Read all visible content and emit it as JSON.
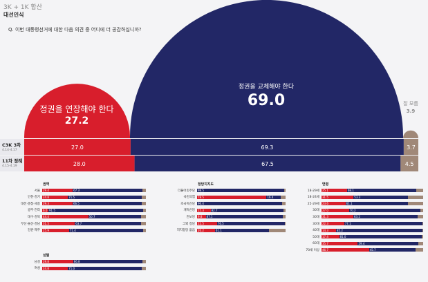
{
  "header": {
    "title": "3K + 1K 합산",
    "subtitle": "대선인식",
    "question": "Q. 이번 대통령선거에 대한 다음 의견 중 어디에 더 공감하십니까?"
  },
  "colors": {
    "red": "#d81e2c",
    "navy": "#222766",
    "gray": "#a08878"
  },
  "chart_data": {
    "type": "bar",
    "main": [
      {
        "name": "정권을 연장해야 한다",
        "value": 27.2,
        "color": "#d81e2c"
      },
      {
        "name": "정권을 교체해야 한다",
        "value": 69.0,
        "color": "#222766"
      },
      {
        "name": "잘 모름",
        "value": 3.9,
        "color": "#a08878"
      }
    ],
    "comparison": [
      {
        "label": "C3K 3차",
        "date": "4.14-4.17",
        "values": [
          27.0,
          69.3,
          3.7
        ]
      },
      {
        "label": "11차 정례",
        "date": "4.15-4.19",
        "values": [
          28.0,
          67.5,
          4.5
        ]
      }
    ],
    "panels": [
      {
        "title": "권역",
        "rows": [
          {
            "label": "서울",
            "values": [
              29.4,
              67.3
            ]
          },
          {
            "label": "인천·경기",
            "values": [
              24.8,
              71.5
            ]
          },
          {
            "label": "대전·충청·세종",
            "values": [
              29.3,
              66.5
            ]
          },
          {
            "label": "광주·전라",
            "values": [
              6.0,
              91.5
            ]
          },
          {
            "label": "대구·경북",
            "values": [
              44.4,
              50.7
            ]
          },
          {
            "label": "부산·울산·경남",
            "values": [
              31.5,
              63.7
            ]
          },
          {
            "label": "강원·제주",
            "values": [
              25.9,
              71.4
            ]
          }
        ]
      },
      {
        "title": "성별",
        "rows": [
          {
            "label": "남성",
            "values": [
              29.8,
              66.8
            ]
          },
          {
            "label": "여성",
            "values": [
              24.8,
              71.0
            ]
          }
        ]
      },
      {
        "title": "정당지지도",
        "rows": [
          {
            "label": "더불어민주당",
            "values": [
              null,
              98.5
            ]
          },
          {
            "label": "국민의힘",
            "values": [
              78.5,
              16.4
            ]
          },
          {
            "label": "조국혁신당",
            "values": [
              null,
              96.4
            ]
          },
          {
            "label": "개혁신당",
            "values": [
              15.3,
              82.7
            ]
          },
          {
            "label": "진보당",
            "values": [
              9.8,
              87.1
            ]
          },
          {
            "label": "그외 정당",
            "values": [
              22.5,
              76.5
            ]
          },
          {
            "label": "지지정당 없음",
            "values": [
              20.2,
              61.1
            ]
          }
        ]
      },
      {
        "title": "연령",
        "rows": [
          {
            "label": "18-29세",
            "values": [
              25.1,
              68.1
            ]
          },
          {
            "label": "18-24세",
            "values": [
              31.5,
              53.3
            ]
          },
          {
            "label": "25-29세",
            "values": [
              23.6,
              61.1
            ]
          },
          {
            "label": "30대",
            "values": [
              27.0,
              70.2
            ]
          },
          {
            "label": "30대",
            "values": [
              31.3,
              63.2
            ]
          },
          {
            "label": "30대",
            "values": [
              22.3,
              77.1
            ]
          },
          {
            "label": "40대",
            "values": [
              14.3,
              85.2
            ]
          },
          {
            "label": "50대",
            "values": [
              17.4,
              81.0
            ]
          },
          {
            "label": "60대",
            "values": [
              35.7,
              59.4
            ]
          },
          {
            "label": "70세 이상",
            "values": [
              46.7,
              45.7
            ]
          }
        ]
      }
    ]
  }
}
